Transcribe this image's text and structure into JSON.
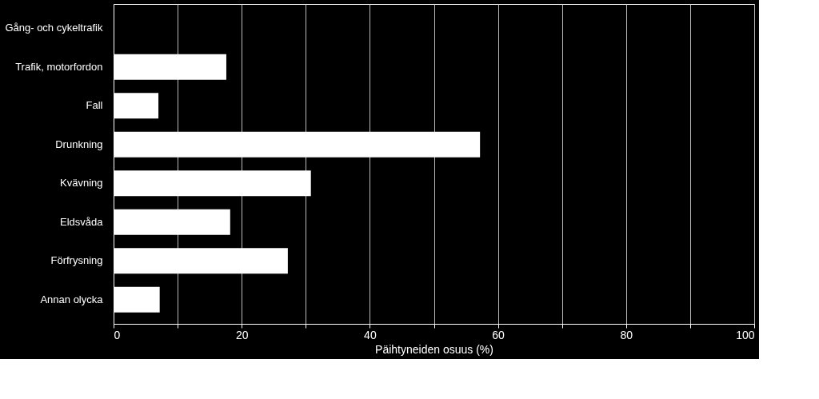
{
  "chart_data": {
    "type": "bar",
    "orientation": "horizontal",
    "xlabel": "Päihtyneiden osuus (%)",
    "categories": [
      "Gång- och cykeltrafik",
      "Trafik, motorfordon",
      "Fall",
      "Drunkning",
      "Kvävning",
      "Eldsvåda",
      "Förfrysning",
      "Annan olycka"
    ],
    "values": [
      0,
      17.6,
      7.0,
      57.2,
      30.8,
      18.2,
      27.2,
      7.2
    ],
    "color": "#ffffff",
    "xlim": [
      0,
      100
    ],
    "xticks": [
      0,
      {
        "value": 10,
        "label": null
      },
      20,
      {
        "value": 30,
        "label": null
      },
      40,
      {
        "value": 50,
        "label": null
      },
      60,
      {
        "value": 70,
        "label": null
      },
      80,
      {
        "value": 90,
        "label": null
      },
      100
    ],
    "grid": "x"
  }
}
